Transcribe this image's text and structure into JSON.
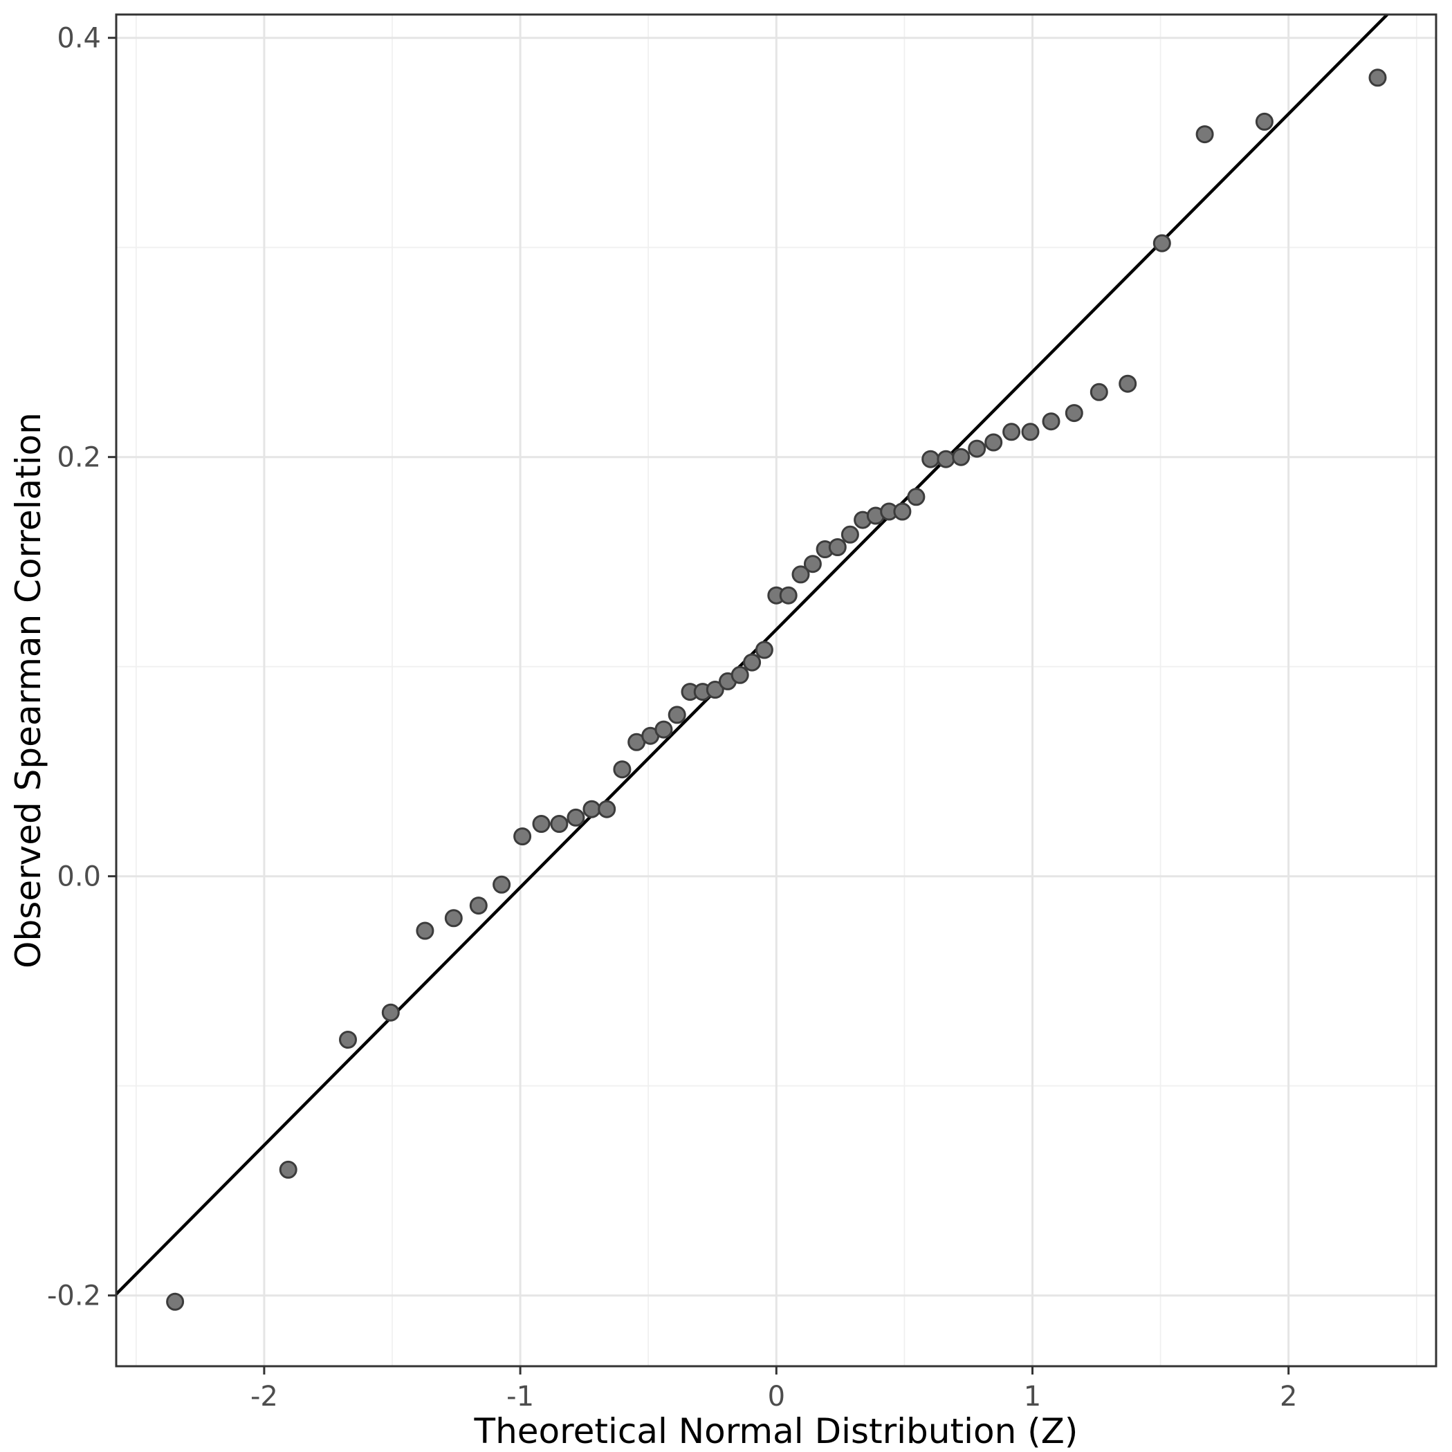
{
  "chart_data": {
    "type": "scatter",
    "title": "",
    "xlabel": "Theoretical Normal Distribution (Z)",
    "ylabel": "Observed Spearman Correlation",
    "x_axis": {
      "tick_values": [
        -2,
        -1,
        0,
        1,
        2
      ],
      "tick_labels": [
        "-2",
        "-1",
        "0",
        "1",
        "2"
      ],
      "minor_gridlines": [
        -2.5,
        -1.5,
        -0.5,
        0.5,
        1.5,
        2.5
      ],
      "range": [
        -2.583,
        2.583
      ]
    },
    "y_axis": {
      "tick_values": [
        -0.2,
        0.0,
        0.2,
        0.4
      ],
      "tick_labels": [
        "-0.2",
        "0.0",
        "0.2",
        "0.4"
      ],
      "minor_gridlines": [
        -0.1,
        0.1,
        0.3
      ],
      "range": [
        -0.2338,
        0.4122
      ]
    },
    "grid": true,
    "legend": false,
    "series_name": "observed-vs-theoretical-quantiles",
    "points": [
      [
        -2.348,
        -0.203
      ],
      [
        -1.906,
        -0.14
      ],
      [
        -1.673,
        -0.078
      ],
      [
        -1.506,
        -0.065
      ],
      [
        -1.372,
        -0.026
      ],
      [
        -1.26,
        -0.02
      ],
      [
        -1.163,
        -0.014
      ],
      [
        -1.073,
        -0.004
      ],
      [
        -0.992,
        0.019
      ],
      [
        -0.918,
        0.025
      ],
      [
        -0.848,
        0.025
      ],
      [
        -0.783,
        0.028
      ],
      [
        -0.721,
        0.032
      ],
      [
        -0.662,
        0.032
      ],
      [
        -0.602,
        0.051
      ],
      [
        -0.546,
        0.064
      ],
      [
        -0.492,
        0.067
      ],
      [
        -0.44,
        0.07
      ],
      [
        -0.388,
        0.077
      ],
      [
        -0.337,
        0.088
      ],
      [
        -0.288,
        0.088
      ],
      [
        -0.239,
        0.089
      ],
      [
        -0.19,
        0.093
      ],
      [
        -0.142,
        0.096
      ],
      [
        -0.095,
        0.102
      ],
      [
        -0.047,
        0.108
      ],
      [
        0.0,
        0.134
      ],
      [
        0.047,
        0.134
      ],
      [
        0.095,
        0.144
      ],
      [
        0.142,
        0.149
      ],
      [
        0.19,
        0.156
      ],
      [
        0.239,
        0.157
      ],
      [
        0.288,
        0.163
      ],
      [
        0.337,
        0.17
      ],
      [
        0.388,
        0.172
      ],
      [
        0.44,
        0.174
      ],
      [
        0.492,
        0.174
      ],
      [
        0.546,
        0.181
      ],
      [
        0.602,
        0.199
      ],
      [
        0.662,
        0.199
      ],
      [
        0.721,
        0.2
      ],
      [
        0.783,
        0.204
      ],
      [
        0.848,
        0.207
      ],
      [
        0.918,
        0.212
      ],
      [
        0.992,
        0.212
      ],
      [
        1.073,
        0.217
      ],
      [
        1.163,
        0.221
      ],
      [
        1.26,
        0.231
      ],
      [
        1.372,
        0.235
      ],
      [
        1.506,
        0.302
      ],
      [
        1.673,
        0.354
      ],
      [
        1.906,
        0.36
      ],
      [
        2.348,
        0.381
      ]
    ],
    "reference_line": {
      "intercept": 0.1177,
      "slope": 0.123
    }
  },
  "colors": {
    "background": "#FFFFFF",
    "panel_background": "#FFFFFF",
    "grid_major": "#E5E5E5",
    "grid_minor": "#F0F0F0",
    "panel_border": "#333333",
    "tick_mark": "#333333",
    "tick_label": "#4D4D4D",
    "axis_title": "#000000",
    "point_fill": "#787878",
    "point_stroke": "#3C3C3C",
    "reference_line": "#000000"
  }
}
